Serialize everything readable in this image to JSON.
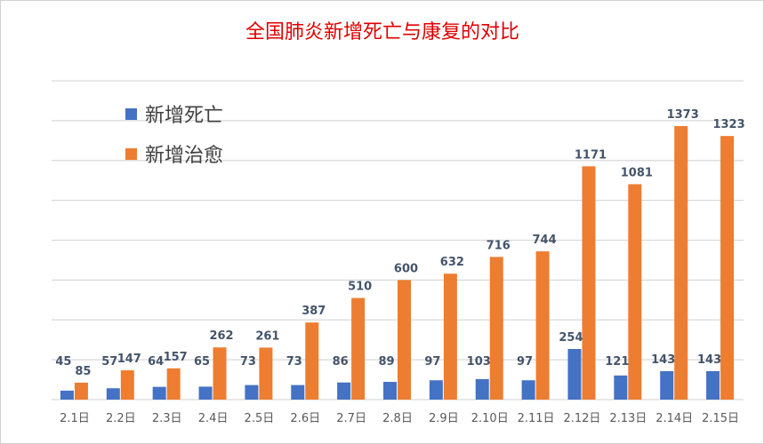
{
  "chart_data": {
    "type": "bar",
    "title": "全国肺炎新增死亡与康复的对比",
    "xlabel": "",
    "ylabel": "",
    "ylim": [
      0,
      1600
    ],
    "grid": true,
    "gridlines_step": 200,
    "legend_position": "top-left",
    "categories": [
      "2.1日",
      "2.2日",
      "2.3日",
      "2.4日",
      "2.5日",
      "2.6日",
      "2.7日",
      "2.8日",
      "2.9日",
      "2.10日",
      "2.11日",
      "2.12日",
      "2.13日",
      "2.14日",
      "2.15日"
    ],
    "series": [
      {
        "name": "新增死亡",
        "color": "#4472c4",
        "values": [
          45,
          57,
          64,
          65,
          73,
          73,
          86,
          89,
          97,
          103,
          97,
          254,
          121,
          143,
          143
        ]
      },
      {
        "name": "新增治愈",
        "color": "#ed7d31",
        "values": [
          85,
          147,
          157,
          262,
          261,
          387,
          510,
          600,
          632,
          716,
          744,
          1171,
          1081,
          1373,
          1323
        ]
      }
    ]
  }
}
